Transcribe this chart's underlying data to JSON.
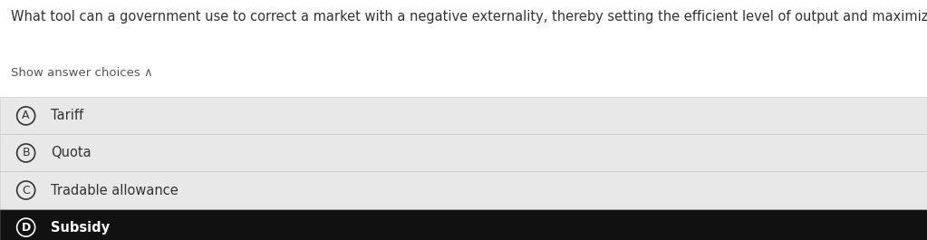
{
  "question": "What tool can a government use to correct a market with a negative externality, thereby setting the efficient level of output and maximizing surplus?",
  "show_text": "Show answer choices ∧",
  "choices": [
    {
      "label": "A",
      "text": "Tariff",
      "bg_color": "#e8e8e8",
      "text_color": "#333333",
      "circle_color": "#333333",
      "bold": false
    },
    {
      "label": "B",
      "text": "Quota",
      "bg_color": "#e8e8e8",
      "text_color": "#333333",
      "circle_color": "#333333",
      "bold": false
    },
    {
      "label": "C",
      "text": "Tradable allowance",
      "bg_color": "#e8e8e8",
      "text_color": "#333333",
      "circle_color": "#333333",
      "bold": false
    },
    {
      "label": "D",
      "text": "Subsidy",
      "bg_color": "#111111",
      "text_color": "#ffffff",
      "circle_color": "#ffffff",
      "bold": true
    }
  ],
  "bg_color": "#ffffff",
  "question_fontsize": 10.5,
  "show_fontsize": 9.5,
  "choice_fontsize": 10.5,
  "question_color": "#333333",
  "show_color": "#555555",
  "fig_width": 10.23,
  "fig_height": 2.65
}
